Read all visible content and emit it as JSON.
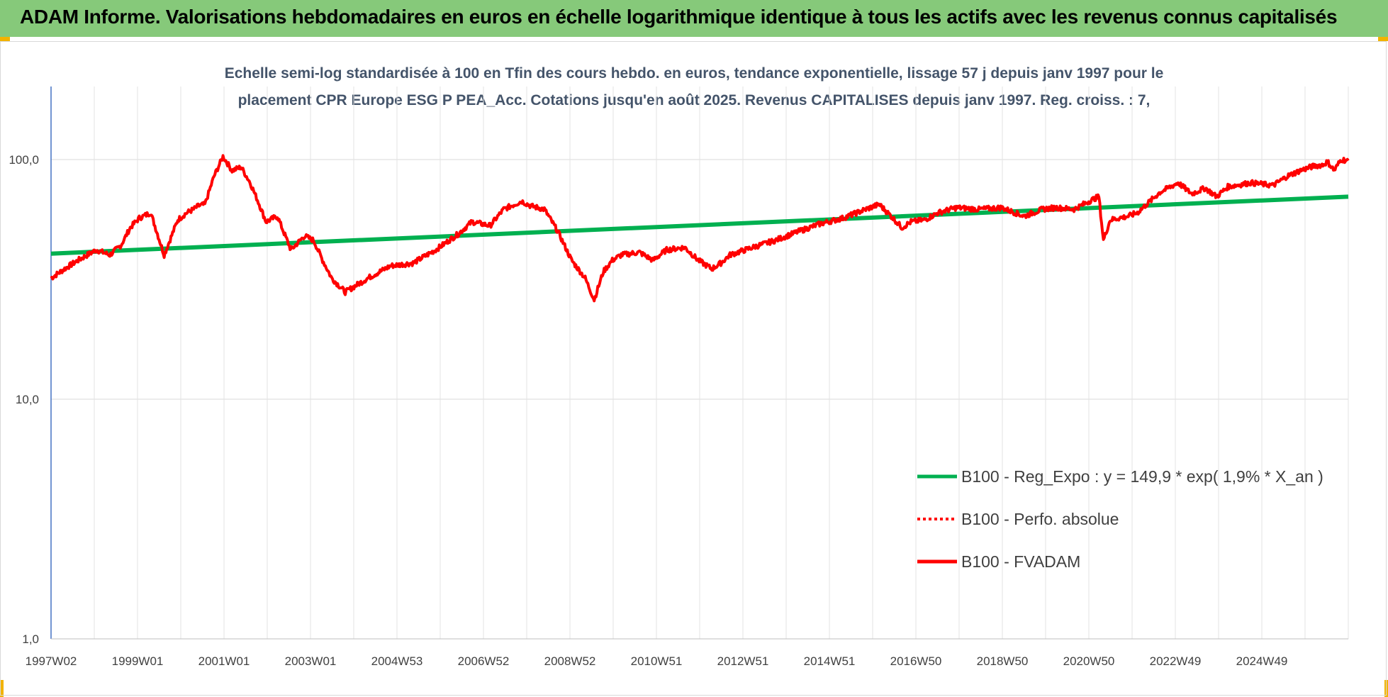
{
  "header": {
    "title": "ADAM Informe. Valorisations hebdomadaires en euros en échelle logarithmique identique à tous les actifs avec les revenus connus capitalisés"
  },
  "chart_data": {
    "type": "line",
    "title_line1": "Echelle semi-log standardisée à 100 en Tfin des cours hebdo. en euros, tendance exponentielle, lissage 57 j depuis janv 1997 pour le",
    "title_line2": "placement CPR Europe ESG P PEA_Acc. Cotations jusqu'en août 2025. Revenus CAPITALISES depuis janv 1997. Reg. croiss. : 7,",
    "y_scale": "log",
    "ylim": [
      1,
      100
    ],
    "y_ticks": [
      {
        "value": 1,
        "label": "1,0"
      },
      {
        "value": 10,
        "label": "10,0"
      },
      {
        "value": 100,
        "label": "100,0"
      }
    ],
    "x_tick_labels": [
      "1997W02",
      "1999W01",
      "2001W01",
      "2003W01",
      "2004W53",
      "2006W52",
      "2008W52",
      "2010W51",
      "2012W51",
      "2014W51",
      "2016W50",
      "2018W50",
      "2020W50",
      "2022W49",
      "2024W49"
    ],
    "xlim": [
      1997.0,
      2025.66
    ],
    "grid": true,
    "legend_position": "bottom-right",
    "series": [
      {
        "name": "B100 - Reg_Expo : y = 149,9 * exp( 1,9% *  X_an )",
        "color": "#00b050",
        "style": "solid",
        "x": [
          1997.0,
          2025.66
        ],
        "y": [
          40.5,
          70.0
        ]
      },
      {
        "name": "B100 - Perfo. absolue",
        "color": "#ff0000",
        "style": "dotted",
        "x": [],
        "y": []
      },
      {
        "name": "B100 - FVADAM",
        "color": "#ff0000",
        "style": "solid",
        "x": [
          1997.0,
          1997.3,
          1997.6,
          1998.0,
          1998.3,
          1998.55,
          1998.75,
          1998.95,
          1999.2,
          1999.5,
          1999.8,
          2000.0,
          2000.15,
          2000.25,
          2000.4,
          2000.6,
          2000.8,
          2001.0,
          2001.2,
          2001.4,
          2001.6,
          2001.75,
          2002.0,
          2002.3,
          2002.6,
          2002.8,
          2003.0,
          2003.2,
          2003.5,
          2004.0,
          2004.5,
          2005.0,
          2005.5,
          2006.0,
          2006.3,
          2006.7,
          2007.0,
          2007.4,
          2007.6,
          2007.9,
          2008.2,
          2008.5,
          2008.8,
          2009.0,
          2009.2,
          2009.4,
          2009.6,
          2010.0,
          2010.3,
          2010.6,
          2011.0,
          2011.3,
          2011.6,
          2011.8,
          2012.0,
          2012.5,
          2013.0,
          2013.5,
          2014.0,
          2014.5,
          2015.0,
          2015.3,
          2015.6,
          2015.8,
          2016.0,
          2016.3,
          2016.6,
          2017.0,
          2017.5,
          2018.0,
          2018.5,
          2018.9,
          2019.2,
          2019.6,
          2020.0,
          2020.15,
          2020.25,
          2020.4,
          2020.8,
          2021.0,
          2021.5,
          2021.9,
          2022.2,
          2022.5,
          2022.75,
          2023.0,
          2023.5,
          2024.0,
          2024.3,
          2024.6,
          2024.9,
          2025.1,
          2025.2,
          2025.35,
          2025.5,
          2025.66
        ],
        "y": [
          32,
          35,
          38,
          42,
          40,
          44,
          52,
          57,
          60,
          40,
          56,
          60,
          62,
          64,
          65,
          85,
          103,
          90,
          93,
          80,
          65,
          55,
          58,
          42,
          48,
          46,
          38,
          32,
          28,
          32,
          36,
          37,
          42,
          49,
          55,
          53,
          62,
          67,
          64,
          62,
          50,
          38,
          32,
          26,
          34,
          38,
          40,
          41,
          38,
          42,
          43,
          38,
          35,
          37,
          40,
          43,
          46,
          50,
          54,
          57,
          62,
          65,
          57,
          52,
          55,
          56,
          60,
          63,
          62,
          63,
          58,
          62,
          63,
          62,
          68,
          70,
          46,
          56,
          58,
          60,
          73,
          80,
          72,
          76,
          70,
          77,
          80,
          78,
          85,
          90,
          94,
          95,
          98,
          90,
          100,
          99
        ]
      }
    ]
  }
}
